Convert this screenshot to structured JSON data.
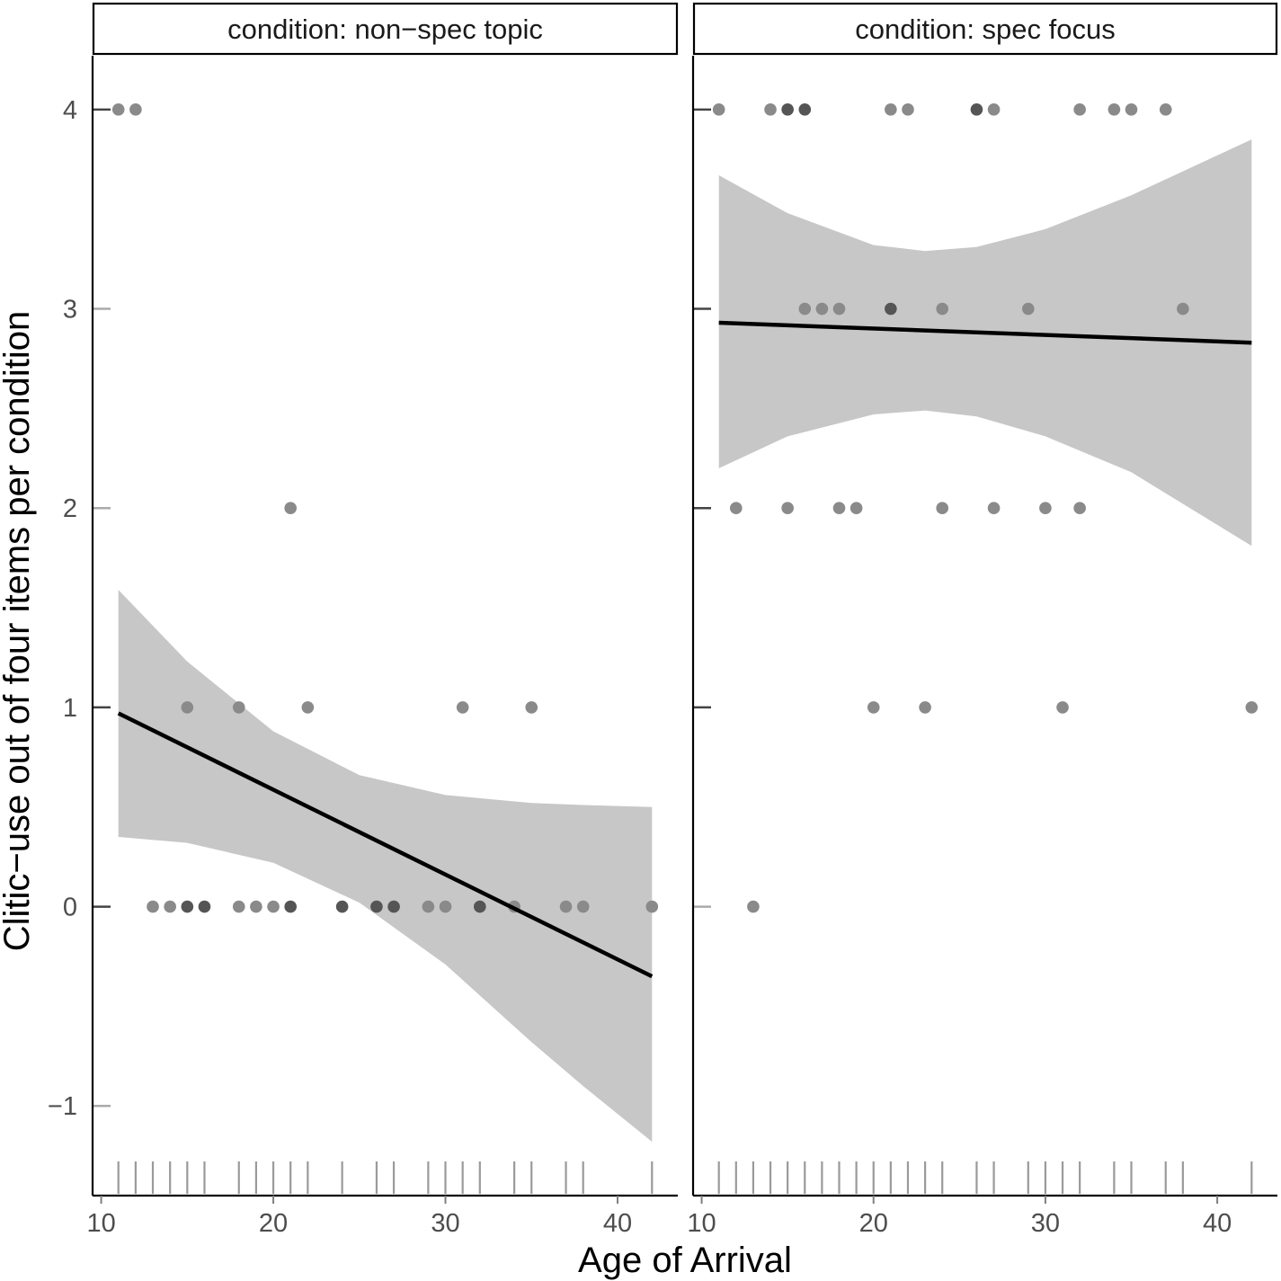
{
  "chart_data": {
    "type": "faceted-scatter-with-regression",
    "xlabel": "Age of Arrival",
    "ylabel": "Clitic−use out of four items per condition",
    "xlim": [
      9.5,
      43.5
    ],
    "ylim": [
      -1.45,
      4.27
    ],
    "x_ticks": [
      10,
      20,
      30,
      40
    ],
    "y_ticks": [
      -1,
      0,
      1,
      2,
      3,
      4
    ],
    "x_tick_labels": [
      "10",
      "20",
      "30",
      "40"
    ],
    "y_tick_labels": [
      "−1",
      "0",
      "1",
      "2",
      "3",
      "4"
    ],
    "colors": {
      "band": "#c6c7c6",
      "line": "#000000",
      "point": "#8a8a8a",
      "axis": "#000000",
      "rug": "#9a9a9a",
      "tick": "#7f7f7f"
    },
    "panels": [
      {
        "label": "condition: non−spec topic",
        "points": [
          {
            "x": 11,
            "y": 4,
            "n": 1
          },
          {
            "x": 12,
            "y": 4,
            "n": 1
          },
          {
            "x": 21,
            "y": 2,
            "n": 1
          },
          {
            "x": 15,
            "y": 1,
            "n": 1
          },
          {
            "x": 18,
            "y": 1,
            "n": 1
          },
          {
            "x": 22,
            "y": 1,
            "n": 1
          },
          {
            "x": 31,
            "y": 1,
            "n": 1
          },
          {
            "x": 35,
            "y": 1,
            "n": 1
          },
          {
            "x": 13,
            "y": 0,
            "n": 1
          },
          {
            "x": 14,
            "y": 0,
            "n": 1
          },
          {
            "x": 15,
            "y": 0,
            "n": 2
          },
          {
            "x": 16,
            "y": 0,
            "n": 2
          },
          {
            "x": 18,
            "y": 0,
            "n": 1
          },
          {
            "x": 19,
            "y": 0,
            "n": 1
          },
          {
            "x": 20,
            "y": 0,
            "n": 1
          },
          {
            "x": 21,
            "y": 0,
            "n": 2
          },
          {
            "x": 24,
            "y": 0,
            "n": 2
          },
          {
            "x": 26,
            "y": 0,
            "n": 2
          },
          {
            "x": 27,
            "y": 0,
            "n": 2
          },
          {
            "x": 29,
            "y": 0,
            "n": 1
          },
          {
            "x": 30,
            "y": 0,
            "n": 1
          },
          {
            "x": 32,
            "y": 0,
            "n": 2
          },
          {
            "x": 34,
            "y": 0,
            "n": 1
          },
          {
            "x": 37,
            "y": 0,
            "n": 1
          },
          {
            "x": 38,
            "y": 0,
            "n": 1
          },
          {
            "x": 42,
            "y": 0,
            "n": 1
          }
        ],
        "fit": {
          "x": [
            11,
            42
          ],
          "y": [
            0.97,
            -0.35
          ]
        },
        "band": {
          "x": [
            11,
            15,
            20,
            25,
            30,
            35,
            38,
            42
          ],
          "upper": [
            1.59,
            1.23,
            0.88,
            0.66,
            0.56,
            0.52,
            0.51,
            0.5
          ],
          "lower": [
            0.35,
            0.32,
            0.22,
            0.02,
            -0.29,
            -0.68,
            -0.9,
            -1.18
          ]
        },
        "y_ticks_dark": [
          0,
          1,
          4
        ],
        "rug_x": [
          11,
          12,
          13,
          14,
          15,
          16,
          18,
          19,
          20,
          21,
          22,
          24,
          26,
          27,
          29,
          30,
          31,
          32,
          34,
          35,
          37,
          38,
          42
        ]
      },
      {
        "label": "condition: spec focus",
        "points": [
          {
            "x": 11,
            "y": 4,
            "n": 1
          },
          {
            "x": 14,
            "y": 4,
            "n": 1
          },
          {
            "x": 15,
            "y": 4,
            "n": 2
          },
          {
            "x": 16,
            "y": 4,
            "n": 2
          },
          {
            "x": 21,
            "y": 4,
            "n": 1
          },
          {
            "x": 22,
            "y": 4,
            "n": 1
          },
          {
            "x": 26,
            "y": 4,
            "n": 2
          },
          {
            "x": 27,
            "y": 4,
            "n": 1
          },
          {
            "x": 32,
            "y": 4,
            "n": 1
          },
          {
            "x": 34,
            "y": 4,
            "n": 1
          },
          {
            "x": 35,
            "y": 4,
            "n": 1
          },
          {
            "x": 37,
            "y": 4,
            "n": 1
          },
          {
            "x": 16,
            "y": 3,
            "n": 1
          },
          {
            "x": 17,
            "y": 3,
            "n": 1
          },
          {
            "x": 18,
            "y": 3,
            "n": 1
          },
          {
            "x": 21,
            "y": 3,
            "n": 2
          },
          {
            "x": 24,
            "y": 3,
            "n": 1
          },
          {
            "x": 29,
            "y": 3,
            "n": 1
          },
          {
            "x": 38,
            "y": 3,
            "n": 1
          },
          {
            "x": 12,
            "y": 2,
            "n": 1
          },
          {
            "x": 15,
            "y": 2,
            "n": 1
          },
          {
            "x": 18,
            "y": 2,
            "n": 1
          },
          {
            "x": 19,
            "y": 2,
            "n": 1
          },
          {
            "x": 24,
            "y": 2,
            "n": 1
          },
          {
            "x": 27,
            "y": 2,
            "n": 1
          },
          {
            "x": 30,
            "y": 2,
            "n": 1
          },
          {
            "x": 32,
            "y": 2,
            "n": 1
          },
          {
            "x": 20,
            "y": 1,
            "n": 1
          },
          {
            "x": 23,
            "y": 1,
            "n": 1
          },
          {
            "x": 31,
            "y": 1,
            "n": 1
          },
          {
            "x": 42,
            "y": 1,
            "n": 1
          },
          {
            "x": 13,
            "y": 0,
            "n": 1
          }
        ],
        "fit": {
          "x": [
            11,
            42
          ],
          "y": [
            2.93,
            2.83
          ]
        },
        "band": {
          "x": [
            11,
            15,
            20,
            23,
            26,
            30,
            35,
            42
          ],
          "upper": [
            3.67,
            3.48,
            3.32,
            3.29,
            3.31,
            3.4,
            3.57,
            3.85
          ],
          "lower": [
            2.2,
            2.36,
            2.47,
            2.49,
            2.46,
            2.36,
            2.18,
            1.81
          ]
        },
        "y_ticks_dark": [
          1,
          2,
          3,
          4
        ],
        "rug_x": [
          11,
          12,
          13,
          14,
          15,
          16,
          17,
          18,
          19,
          20,
          21,
          22,
          23,
          24,
          26,
          27,
          29,
          30,
          31,
          32,
          34,
          35,
          37,
          38,
          42
        ]
      }
    ]
  }
}
